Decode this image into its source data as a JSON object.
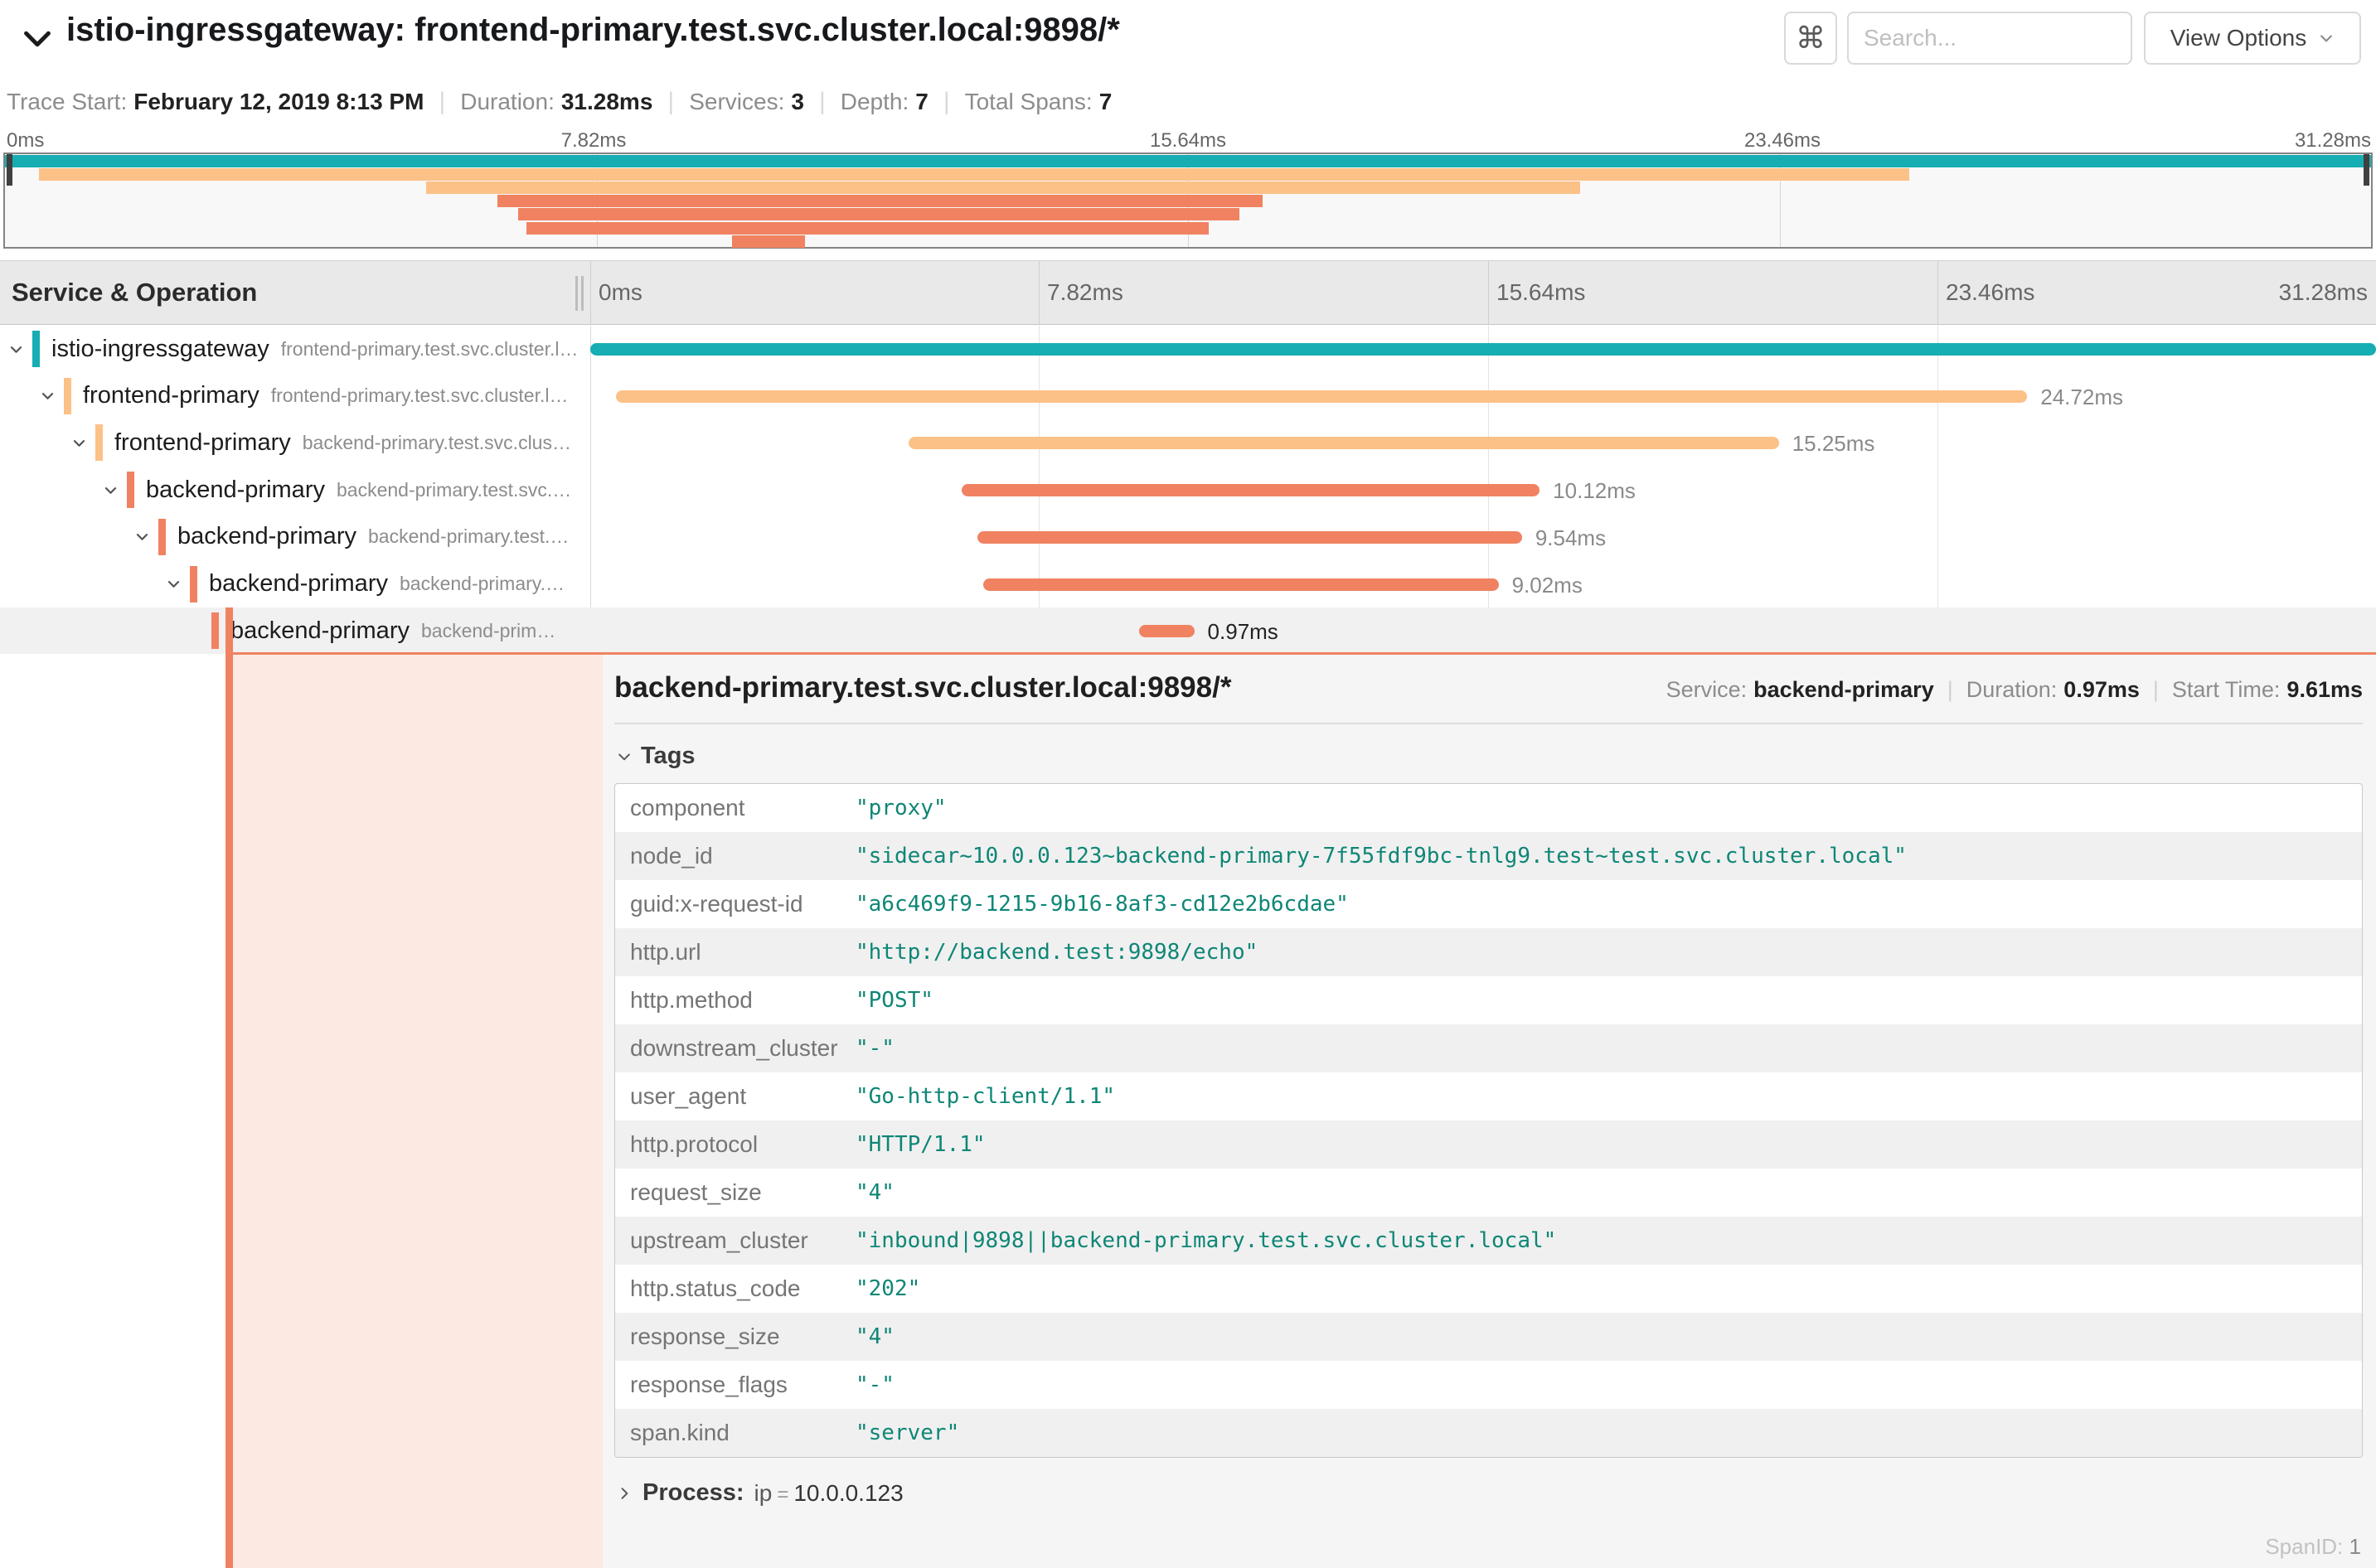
{
  "header": {
    "title": "istio-ingressgateway: frontend-primary.test.svc.cluster.local:9898/*",
    "shortcut_key": "⌘",
    "search_placeholder": "Search...",
    "view_options_label": "View Options"
  },
  "trace_meta": {
    "trace_start_label": "Trace Start:",
    "trace_start_value": "February 12, 2019 8:13 PM",
    "duration_label": "Duration:",
    "duration_value": "31.28ms",
    "services_label": "Services:",
    "services_value": "3",
    "depth_label": "Depth:",
    "depth_value": "7",
    "total_spans_label": "Total Spans:",
    "total_spans_value": "7"
  },
  "timeline": {
    "left_column_header": "Service & Operation",
    "ticks": [
      "0ms",
      "7.82ms",
      "15.64ms",
      "23.46ms",
      "31.28ms"
    ]
  },
  "chart_data": {
    "type": "gantt-trace",
    "total_duration_ms": 31.28,
    "ticks_ms": [
      0,
      7.82,
      15.64,
      23.46,
      31.28
    ],
    "spans": [
      {
        "service": "istio-ingressgateway",
        "operation": "frontend-primary.test.svc.cluster.l…",
        "depth": 0,
        "start_ms": 0.0,
        "duration_ms": 31.28,
        "color": "#16adb3",
        "duration_label": "",
        "has_children": true,
        "selected": false
      },
      {
        "service": "frontend-primary",
        "operation": "frontend-primary.test.svc.cluster.l…",
        "depth": 1,
        "start_ms": 0.45,
        "duration_ms": 24.72,
        "color": "#fcc187",
        "duration_label": "24.72ms",
        "has_children": true,
        "selected": false
      },
      {
        "service": "frontend-primary",
        "operation": "backend-primary.test.svc.clus…",
        "depth": 2,
        "start_ms": 5.57,
        "duration_ms": 15.25,
        "color": "#fcc187",
        "duration_label": "15.25ms",
        "has_children": true,
        "selected": false
      },
      {
        "service": "backend-primary",
        "operation": "backend-primary.test.svc.…",
        "depth": 3,
        "start_ms": 6.51,
        "duration_ms": 10.12,
        "color": "#f08261",
        "duration_label": "10.12ms",
        "has_children": true,
        "selected": false
      },
      {
        "service": "backend-primary",
        "operation": "backend-primary.test.…",
        "depth": 4,
        "start_ms": 6.78,
        "duration_ms": 9.54,
        "color": "#f08261",
        "duration_label": "9.54ms",
        "has_children": true,
        "selected": false
      },
      {
        "service": "backend-primary",
        "operation": "backend-primary.…",
        "depth": 5,
        "start_ms": 6.89,
        "duration_ms": 9.02,
        "color": "#f08261",
        "duration_label": "9.02ms",
        "has_children": true,
        "selected": false
      },
      {
        "service": "backend-primary",
        "operation": "backend-prim…",
        "depth": 6,
        "start_ms": 9.61,
        "duration_ms": 0.97,
        "color": "#f08261",
        "duration_label": "0.97ms",
        "has_children": false,
        "selected": true
      }
    ]
  },
  "detail": {
    "title": "backend-primary.test.svc.cluster.local:9898/*",
    "service_label": "Service:",
    "service_value": "backend-primary",
    "duration_label": "Duration:",
    "duration_value": "0.97ms",
    "start_time_label": "Start Time:",
    "start_time_value": "9.61ms",
    "tags_section_label": "Tags",
    "tags": [
      {
        "key": "component",
        "value": "\"proxy\""
      },
      {
        "key": "node_id",
        "value": "\"sidecar~10.0.0.123~backend-primary-7f55fdf9bc-tnlg9.test~test.svc.cluster.local\""
      },
      {
        "key": "guid:x-request-id",
        "value": "\"a6c469f9-1215-9b16-8af3-cd12e2b6cdae\""
      },
      {
        "key": "http.url",
        "value": "\"http://backend.test:9898/echo\""
      },
      {
        "key": "http.method",
        "value": "\"POST\""
      },
      {
        "key": "downstream_cluster",
        "value": "\"-\""
      },
      {
        "key": "user_agent",
        "value": "\"Go-http-client/1.1\""
      },
      {
        "key": "http.protocol",
        "value": "\"HTTP/1.1\""
      },
      {
        "key": "request_size",
        "value": "\"4\""
      },
      {
        "key": "upstream_cluster",
        "value": "\"inbound|9898||backend-primary.test.svc.cluster.local\""
      },
      {
        "key": "http.status_code",
        "value": "\"202\""
      },
      {
        "key": "response_size",
        "value": "\"4\""
      },
      {
        "key": "response_flags",
        "value": "\"-\""
      },
      {
        "key": "span.kind",
        "value": "\"server\""
      }
    ],
    "process_label": "Process:",
    "process_key": "ip",
    "process_value": "10.0.0.123",
    "span_id_label": "SpanID:",
    "span_id_value": "1"
  },
  "colors": {
    "teal_span": "#16adb3",
    "light_orange_span": "#fcc187",
    "salmon_span": "#f08261",
    "selected_tint": "#fce9e1",
    "tag_value_teal": "#0e8676"
  }
}
